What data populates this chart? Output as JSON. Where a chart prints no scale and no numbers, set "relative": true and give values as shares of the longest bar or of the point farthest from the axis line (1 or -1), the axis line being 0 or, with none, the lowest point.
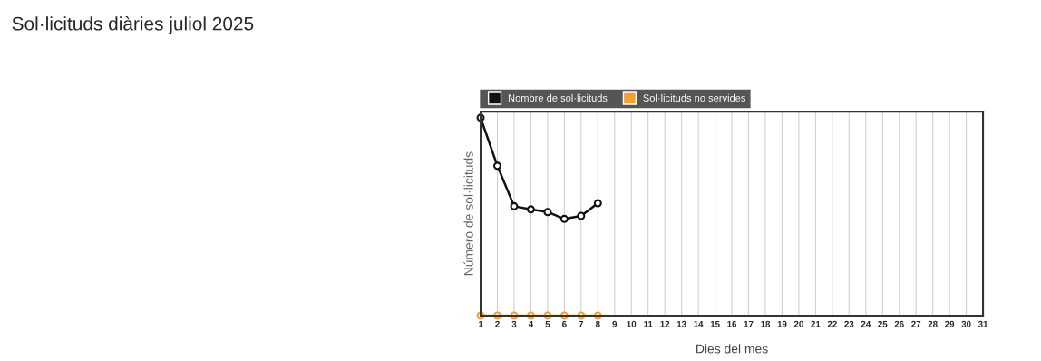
{
  "chart_data": {
    "type": "line",
    "title": "Sol·licituds diàries juliol 2025",
    "xlabel": "Dies del mes",
    "ylabel": "Número de sol·licituds",
    "categories": [
      "1",
      "2",
      "3",
      "4",
      "5",
      "6",
      "7",
      "8",
      "9",
      "10",
      "11",
      "12",
      "13",
      "14",
      "15",
      "16",
      "17",
      "18",
      "19",
      "20",
      "21",
      "22",
      "23",
      "24",
      "25",
      "26",
      "27",
      "28",
      "29",
      "30",
      "31"
    ],
    "series": [
      {
        "name": "Nombre de sol·licituds",
        "color": "#111111",
        "values": [
          1,
          0.757,
          0.553,
          0.537,
          0.524,
          0.489,
          0.504,
          0.568,
          null,
          null,
          null,
          null,
          null,
          null,
          null,
          null,
          null,
          null,
          null,
          null,
          null,
          null,
          null,
          null,
          null,
          null,
          null,
          null,
          null,
          null,
          null
        ]
      },
      {
        "name": "Sol·licituds no servides",
        "color": "#f5a033",
        "values": [
          0,
          0,
          0,
          0,
          0,
          0,
          0,
          0,
          null,
          null,
          null,
          null,
          null,
          null,
          null,
          null,
          null,
          null,
          null,
          null,
          null,
          null,
          null,
          null,
          null,
          null,
          null,
          null,
          null,
          null,
          null
        ]
      }
    ],
    "relative": true,
    "grid": "x",
    "legend": "top",
    "marker": "circle",
    "line_style": "solid",
    "tick_labels": "x"
  }
}
